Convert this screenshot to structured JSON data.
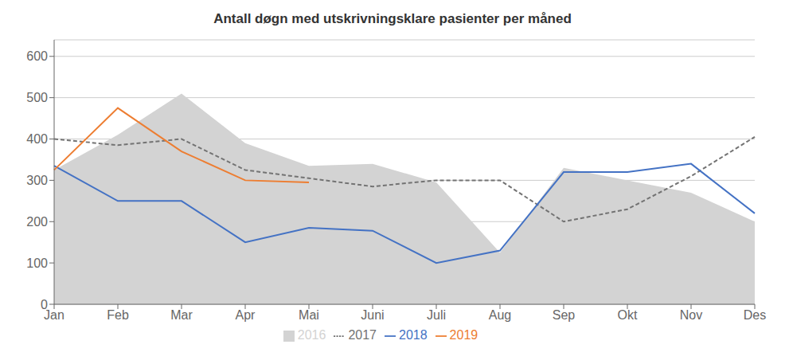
{
  "chart_data": {
    "type": "line",
    "title": "Antall døgn med utskrivningsklare pasienter per måned",
    "categories": [
      "Jan",
      "Feb",
      "Mar",
      "Apr",
      "Mai",
      "Juni",
      "Juli",
      "Aug",
      "Sep",
      "Okt",
      "Nov",
      "Des"
    ],
    "series": [
      {
        "name": "2016",
        "type": "area",
        "color": "#d3d3d3",
        "values": [
          325,
          410,
          510,
          390,
          335,
          340,
          295,
          125,
          330,
          300,
          270,
          200
        ]
      },
      {
        "name": "2017",
        "type": "line",
        "line_style": "dashed",
        "color": "#737373",
        "values": [
          400,
          385,
          400,
          325,
          305,
          285,
          300,
          300,
          200,
          230,
          310,
          405
        ]
      },
      {
        "name": "2018",
        "type": "line",
        "line_style": "solid",
        "color": "#4472c4",
        "values": [
          335,
          250,
          250,
          150,
          185,
          178,
          100,
          130,
          320,
          320,
          340,
          220
        ]
      },
      {
        "name": "2019",
        "type": "line",
        "line_style": "solid",
        "color": "#ed7d31",
        "values": [
          325,
          475,
          370,
          300,
          295,
          null,
          null,
          null,
          null,
          null,
          null,
          null
        ]
      }
    ],
    "ylim": [
      0,
      640
    ],
    "yticks": [
      0,
      100,
      200,
      300,
      400,
      500,
      600
    ],
    "grid": true,
    "legend": "bottom"
  }
}
